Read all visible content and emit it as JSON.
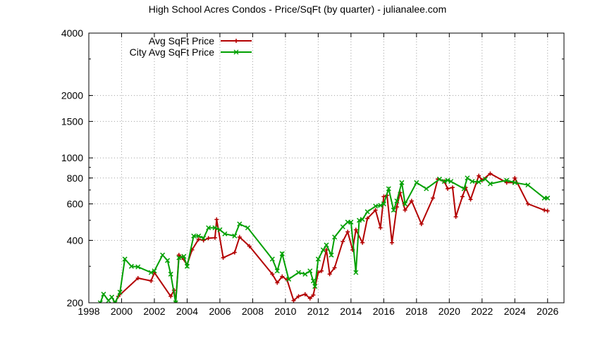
{
  "chart_data": {
    "type": "line",
    "title": "High School Acres Condos - Price/SqFt (by quarter) - julianalee.com",
    "xlabel": "",
    "ylabel": "",
    "xlim": [
      1998,
      2027
    ],
    "ylim": [
      200,
      4000
    ],
    "y_scale": "log",
    "grid": true,
    "legend_position": "top-left",
    "x_ticks": [
      1998,
      2000,
      2002,
      2004,
      2006,
      2008,
      2010,
      2012,
      2014,
      2016,
      2018,
      2020,
      2022,
      2024,
      2026
    ],
    "y_ticks": [
      200,
      400,
      600,
      800,
      1000,
      1500,
      2000,
      4000
    ],
    "series": [
      {
        "name": "Avg SqFt Price",
        "color": "#b30000",
        "marker": "plus",
        "points": [
          [
            1999.6,
            200
          ],
          [
            1999.8,
            215
          ],
          [
            2001.0,
            263
          ],
          [
            2001.8,
            255
          ],
          [
            2002.0,
            280
          ],
          [
            2003.0,
            215
          ],
          [
            2003.2,
            230
          ],
          [
            2003.3,
            180
          ],
          [
            2003.5,
            340
          ],
          [
            2003.7,
            330
          ],
          [
            2004.0,
            305
          ],
          [
            2004.3,
            360
          ],
          [
            2004.7,
            405
          ],
          [
            2005.0,
            400
          ],
          [
            2005.3,
            410
          ],
          [
            2005.7,
            412
          ],
          [
            2005.8,
            505
          ],
          [
            2006.2,
            330
          ],
          [
            2006.9,
            350
          ],
          [
            2007.2,
            415
          ],
          [
            2007.8,
            375
          ],
          [
            2009.2,
            275
          ],
          [
            2009.5,
            250
          ],
          [
            2009.8,
            268
          ],
          [
            2010.1,
            258
          ],
          [
            2010.5,
            205
          ],
          [
            2010.8,
            215
          ],
          [
            2011.2,
            220
          ],
          [
            2011.5,
            210
          ],
          [
            2011.7,
            218
          ],
          [
            2012.0,
            280
          ],
          [
            2012.2,
            285
          ],
          [
            2012.5,
            360
          ],
          [
            2012.7,
            275
          ],
          [
            2013.0,
            295
          ],
          [
            2013.5,
            395
          ],
          [
            2013.8,
            440
          ],
          [
            2014.1,
            360
          ],
          [
            2014.3,
            450
          ],
          [
            2014.7,
            390
          ],
          [
            2015.0,
            510
          ],
          [
            2015.5,
            560
          ],
          [
            2015.8,
            460
          ],
          [
            2016.0,
            650
          ],
          [
            2016.2,
            660
          ],
          [
            2016.5,
            390
          ],
          [
            2016.8,
            580
          ],
          [
            2017.0,
            680
          ],
          [
            2017.3,
            560
          ],
          [
            2017.7,
            620
          ],
          [
            2018.3,
            480
          ],
          [
            2019.0,
            640
          ],
          [
            2019.3,
            790
          ],
          [
            2019.7,
            770
          ],
          [
            2019.9,
            710
          ],
          [
            2020.2,
            720
          ],
          [
            2020.4,
            520
          ],
          [
            2020.8,
            650
          ],
          [
            2021.0,
            720
          ],
          [
            2021.3,
            630
          ],
          [
            2021.8,
            820
          ],
          [
            2022.0,
            780
          ],
          [
            2022.5,
            840
          ],
          [
            2023.5,
            760
          ],
          [
            2023.9,
            760
          ],
          [
            2024.0,
            800
          ],
          [
            2024.8,
            600
          ],
          [
            2025.8,
            560
          ],
          [
            2026.0,
            555
          ]
        ]
      },
      {
        "name": "City Avg SqFt Price",
        "color": "#00a000",
        "marker": "x",
        "points": [
          [
            1998.7,
            195
          ],
          [
            1998.9,
            220
          ],
          [
            1999.2,
            205
          ],
          [
            1999.4,
            213
          ],
          [
            1999.6,
            200
          ],
          [
            1999.9,
            225
          ],
          [
            2000.2,
            325
          ],
          [
            2000.6,
            300
          ],
          [
            2001.0,
            298
          ],
          [
            2001.8,
            280
          ],
          [
            2002.0,
            285
          ],
          [
            2002.5,
            340
          ],
          [
            2002.8,
            320
          ],
          [
            2003.0,
            275
          ],
          [
            2003.3,
            150
          ],
          [
            2003.5,
            330
          ],
          [
            2003.8,
            335
          ],
          [
            2004.0,
            300
          ],
          [
            2004.4,
            420
          ],
          [
            2004.7,
            420
          ],
          [
            2005.0,
            410
          ],
          [
            2005.3,
            460
          ],
          [
            2005.7,
            460
          ],
          [
            2006.0,
            450
          ],
          [
            2006.3,
            430
          ],
          [
            2006.9,
            420
          ],
          [
            2007.2,
            480
          ],
          [
            2007.7,
            460
          ],
          [
            2009.2,
            325
          ],
          [
            2009.5,
            285
          ],
          [
            2009.8,
            345
          ],
          [
            2010.2,
            260
          ],
          [
            2010.8,
            280
          ],
          [
            2011.2,
            275
          ],
          [
            2011.5,
            285
          ],
          [
            2011.7,
            255
          ],
          [
            2011.8,
            240
          ],
          [
            2012.0,
            325
          ],
          [
            2012.3,
            360
          ],
          [
            2012.5,
            380
          ],
          [
            2012.8,
            340
          ],
          [
            2013.0,
            415
          ],
          [
            2013.5,
            465
          ],
          [
            2013.8,
            490
          ],
          [
            2014.0,
            490
          ],
          [
            2014.3,
            280
          ],
          [
            2014.5,
            500
          ],
          [
            2014.7,
            505
          ],
          [
            2015.0,
            550
          ],
          [
            2015.5,
            585
          ],
          [
            2015.8,
            590
          ],
          [
            2016.0,
            600
          ],
          [
            2016.3,
            710
          ],
          [
            2016.6,
            560
          ],
          [
            2016.8,
            620
          ],
          [
            2017.1,
            760
          ],
          [
            2017.3,
            600
          ],
          [
            2018.0,
            760
          ],
          [
            2018.6,
            710
          ],
          [
            2019.4,
            790
          ],
          [
            2019.7,
            770
          ],
          [
            2019.9,
            780
          ],
          [
            2020.1,
            770
          ],
          [
            2020.9,
            710
          ],
          [
            2021.1,
            800
          ],
          [
            2021.4,
            770
          ],
          [
            2021.8,
            765
          ],
          [
            2022.2,
            790
          ],
          [
            2022.5,
            750
          ],
          [
            2023.5,
            780
          ],
          [
            2024.0,
            760
          ],
          [
            2024.8,
            740
          ],
          [
            2025.8,
            640
          ],
          [
            2026.0,
            640
          ]
        ]
      }
    ]
  }
}
